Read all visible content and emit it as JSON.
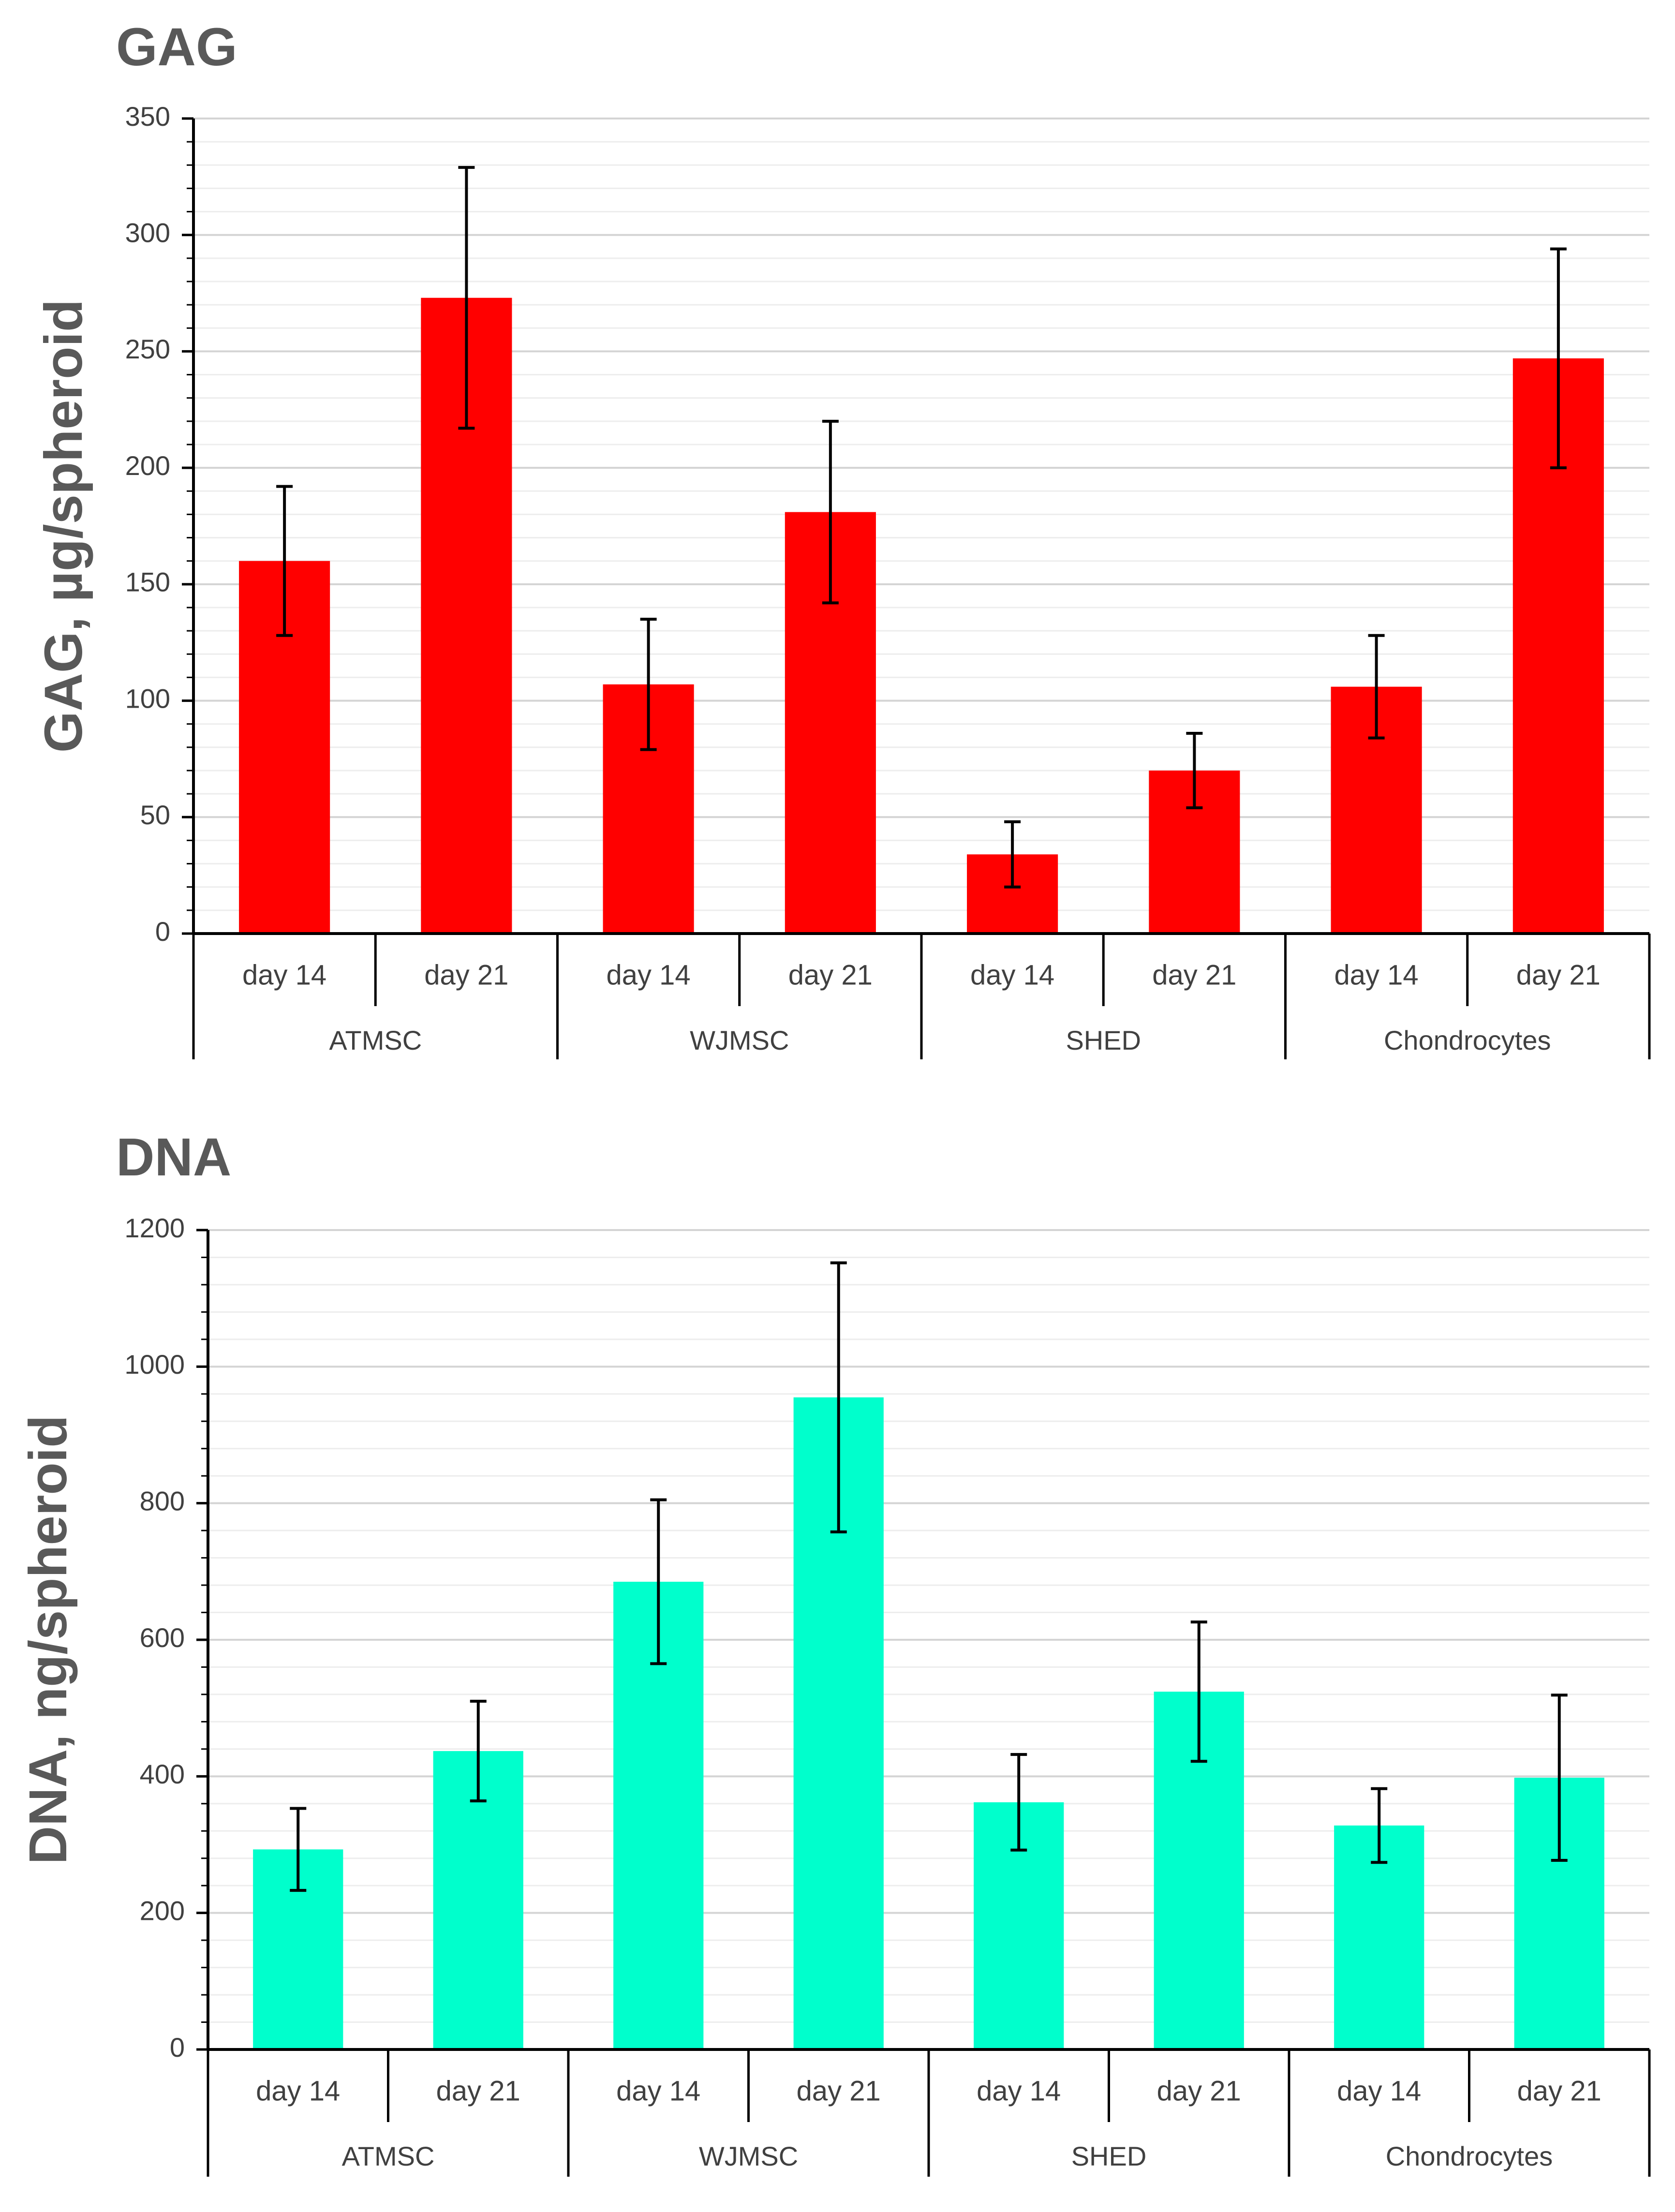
{
  "chart_data": [
    {
      "type": "bar",
      "title": "GAG",
      "ylabel": "GAG, µg/spheroid",
      "xlabel": "",
      "ylim": [
        0,
        350
      ],
      "yticks": [
        0,
        50,
        100,
        150,
        200,
        250,
        300,
        350
      ],
      "minor_step": 10,
      "grid": true,
      "color": "#FF0000",
      "groups": [
        "ATMSC",
        "WJMSC",
        "SHED",
        "Chondrocytes"
      ],
      "categories": [
        "day 14",
        "day 21",
        "day 14",
        "day 21",
        "day 14",
        "day 21",
        "day 14",
        "day 21"
      ],
      "values": [
        160,
        273,
        107,
        181,
        34,
        70,
        106,
        247
      ],
      "errors": [
        32,
        56,
        28,
        39,
        14,
        16,
        22,
        47
      ]
    },
    {
      "type": "bar",
      "title": "DNA",
      "ylabel": "DNA, ng/spheroid",
      "xlabel": "",
      "ylim": [
        0,
        1200
      ],
      "yticks": [
        0,
        200,
        400,
        600,
        800,
        1000,
        1200
      ],
      "minor_step": 40,
      "grid": true,
      "color": "#00FFCC",
      "groups": [
        "ATMSC",
        "WJMSC",
        "SHED",
        "Chondrocytes"
      ],
      "categories": [
        "day 14",
        "day 21",
        "day 14",
        "day 21",
        "day 14",
        "day 21",
        "day 14",
        "day 21"
      ],
      "values": [
        293,
        437,
        685,
        955,
        362,
        524,
        328,
        398
      ],
      "errors": [
        60,
        73,
        120,
        197,
        70,
        102,
        54,
        121
      ]
    }
  ]
}
